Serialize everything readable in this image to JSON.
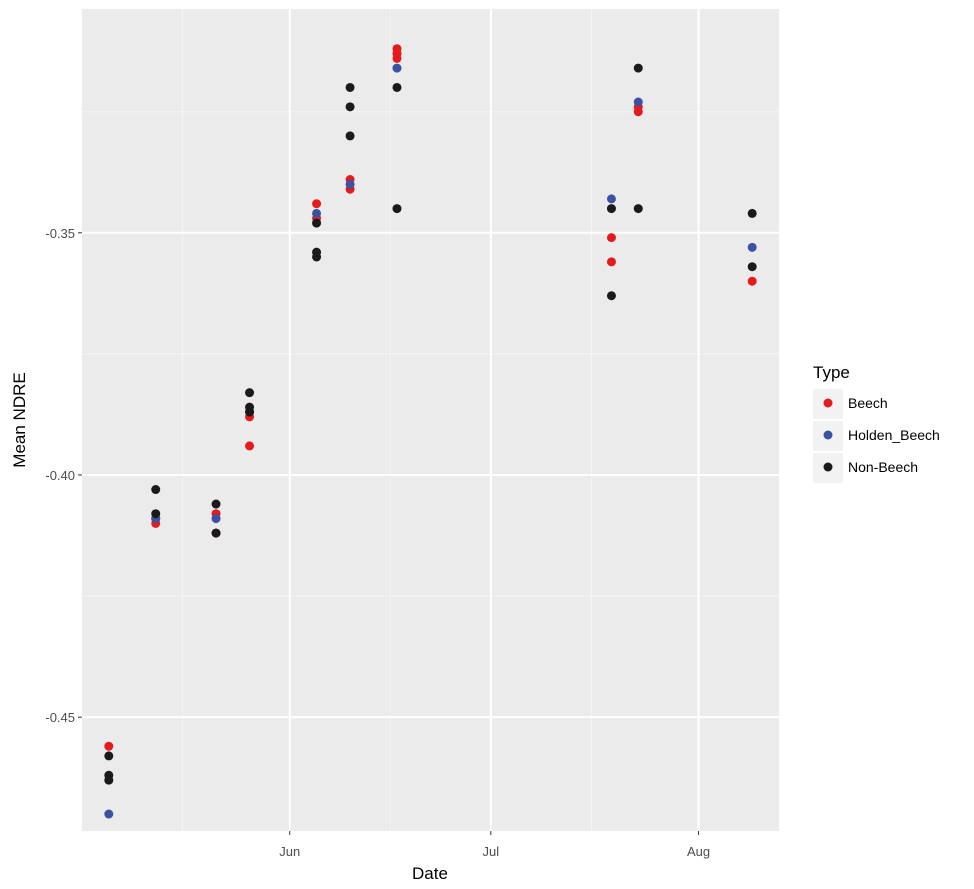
{
  "chart_data": {
    "type": "scatter",
    "xlabel": "Date",
    "ylabel": "Mean NDRE",
    "x_axis_type": "date",
    "xlim": [
      "2018-05-01",
      "2018-08-13"
    ],
    "ylim": [
      -0.4735,
      -0.3038
    ],
    "x_ticks": [
      {
        "date": "2018-06-01",
        "label": "Jun"
      },
      {
        "date": "2018-07-01",
        "label": "Jul"
      },
      {
        "date": "2018-08-01",
        "label": "Aug"
      }
    ],
    "x_minor_ticks": [
      "2018-05-16",
      "2018-06-16",
      "2018-07-16"
    ],
    "y_ticks": [
      {
        "value": -0.35,
        "label": "-0.35"
      },
      {
        "value": -0.4,
        "label": "-0.40"
      },
      {
        "value": -0.45,
        "label": "-0.45"
      }
    ],
    "y_minor_ticks": [
      -0.325,
      -0.375,
      -0.425
    ],
    "grid": true,
    "legend": {
      "title": "Type",
      "position": "right"
    },
    "series": [
      {
        "name": "Beech",
        "color": "#E41A1C",
        "points": [
          {
            "x": "2018-05-05",
            "y": -0.456
          },
          {
            "x": "2018-05-12",
            "y": -0.41
          },
          {
            "x": "2018-05-12",
            "y": -0.409
          },
          {
            "x": "2018-05-21",
            "y": -0.412
          },
          {
            "x": "2018-05-21",
            "y": -0.408
          },
          {
            "x": "2018-05-26",
            "y": -0.394
          },
          {
            "x": "2018-05-26",
            "y": -0.388
          },
          {
            "x": "2018-06-05",
            "y": -0.347
          },
          {
            "x": "2018-06-05",
            "y": -0.344
          },
          {
            "x": "2018-06-10",
            "y": -0.341
          },
          {
            "x": "2018-06-10",
            "y": -0.339
          },
          {
            "x": "2018-06-17",
            "y": -0.312
          },
          {
            "x": "2018-06-17",
            "y": -0.313
          },
          {
            "x": "2018-06-17",
            "y": -0.314
          },
          {
            "x": "2018-07-19",
            "y": -0.351
          },
          {
            "x": "2018-07-19",
            "y": -0.356
          },
          {
            "x": "2018-07-23",
            "y": -0.324
          },
          {
            "x": "2018-07-23",
            "y": -0.325
          },
          {
            "x": "2018-08-09",
            "y": -0.36
          }
        ]
      },
      {
        "name": "Holden_Beech",
        "color": "#3B52A3",
        "points": [
          {
            "x": "2018-05-05",
            "y": -0.47
          },
          {
            "x": "2018-05-12",
            "y": -0.409
          },
          {
            "x": "2018-05-21",
            "y": -0.409
          },
          {
            "x": "2018-05-26",
            "y": -0.387
          },
          {
            "x": "2018-06-05",
            "y": -0.346
          },
          {
            "x": "2018-06-10",
            "y": -0.34
          },
          {
            "x": "2018-06-17",
            "y": -0.316
          },
          {
            "x": "2018-07-19",
            "y": -0.343
          },
          {
            "x": "2018-07-23",
            "y": -0.323
          },
          {
            "x": "2018-08-09",
            "y": -0.353
          }
        ]
      },
      {
        "name": "Non-Beech",
        "color": "#1A1A1A",
        "points": [
          {
            "x": "2018-05-05",
            "y": -0.458
          },
          {
            "x": "2018-05-05",
            "y": -0.462
          },
          {
            "x": "2018-05-05",
            "y": -0.463
          },
          {
            "x": "2018-05-12",
            "y": -0.403
          },
          {
            "x": "2018-05-12",
            "y": -0.408
          },
          {
            "x": "2018-05-21",
            "y": -0.406
          },
          {
            "x": "2018-05-21",
            "y": -0.412
          },
          {
            "x": "2018-05-26",
            "y": -0.383
          },
          {
            "x": "2018-05-26",
            "y": -0.386
          },
          {
            "x": "2018-05-26",
            "y": -0.387
          },
          {
            "x": "2018-06-05",
            "y": -0.354
          },
          {
            "x": "2018-06-05",
            "y": -0.355
          },
          {
            "x": "2018-06-05",
            "y": -0.348
          },
          {
            "x": "2018-06-10",
            "y": -0.32
          },
          {
            "x": "2018-06-10",
            "y": -0.324
          },
          {
            "x": "2018-06-10",
            "y": -0.33
          },
          {
            "x": "2018-06-17",
            "y": -0.32
          },
          {
            "x": "2018-06-17",
            "y": -0.345
          },
          {
            "x": "2018-07-19",
            "y": -0.345
          },
          {
            "x": "2018-07-19",
            "y": -0.363
          },
          {
            "x": "2018-07-23",
            "y": -0.316
          },
          {
            "x": "2018-07-23",
            "y": -0.345
          },
          {
            "x": "2018-08-09",
            "y": -0.346
          },
          {
            "x": "2018-08-09",
            "y": -0.357
          }
        ]
      }
    ]
  }
}
